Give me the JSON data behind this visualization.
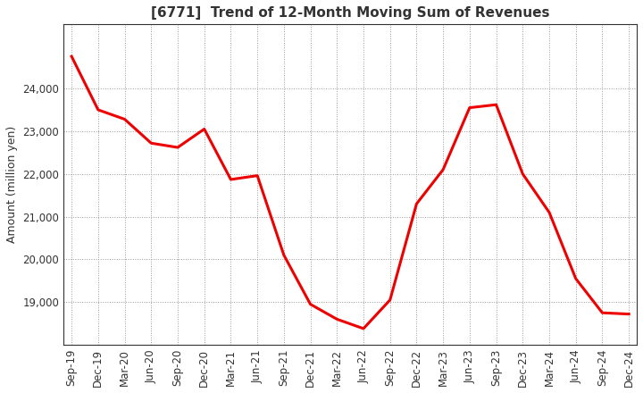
{
  "title": "[6771]  Trend of 12-Month Moving Sum of Revenues",
  "ylabel": "Amount (million yen)",
  "line_color": "#ee0000",
  "line_width": 2.2,
  "background_color": "#ffffff",
  "grid_color": "#999999",
  "x_labels": [
    "Sep-19",
    "Dec-19",
    "Mar-20",
    "Jun-20",
    "Sep-20",
    "Dec-20",
    "Mar-21",
    "Jun-21",
    "Sep-21",
    "Dec-21",
    "Mar-22",
    "Jun-22",
    "Sep-22",
    "Dec-22",
    "Mar-23",
    "Jun-23",
    "Sep-23",
    "Dec-23",
    "Mar-24",
    "Jun-24",
    "Sep-24",
    "Dec-24"
  ],
  "values": [
    24750,
    23500,
    23280,
    22720,
    22620,
    23050,
    21870,
    21960,
    20100,
    18950,
    18600,
    18380,
    19050,
    21300,
    22100,
    23550,
    23620,
    22000,
    21100,
    19550,
    18750,
    18720
  ],
  "ylim_min": 18000,
  "ylim_max": 25500,
  "yticks": [
    19000,
    20000,
    21000,
    22000,
    23000,
    24000
  ],
  "title_fontsize": 11,
  "title_color": "#333333",
  "label_fontsize": 9,
  "tick_fontsize": 8.5
}
